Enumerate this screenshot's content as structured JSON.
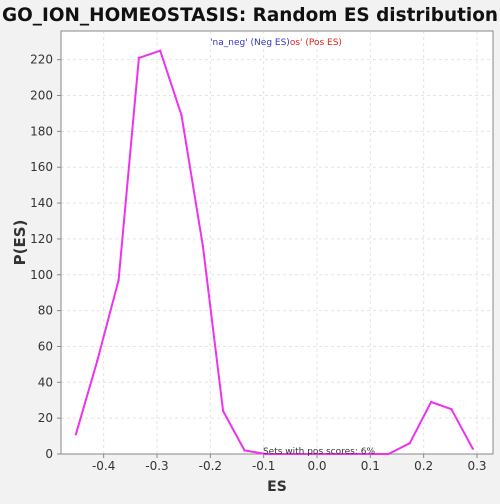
{
  "chart_data": {
    "type": "line",
    "title": "GO_ION_HOMEOSTASIS: Random ES distribution",
    "xlabel": "ES",
    "ylabel": "P(ES)",
    "xlim": [
      -0.48,
      0.33
    ],
    "ylim": [
      0,
      236
    ],
    "grid": true,
    "x_ticks": [
      -0.4,
      -0.3,
      -0.2,
      -0.1,
      0.0,
      0.1,
      0.2,
      0.3
    ],
    "x_tick_labels": [
      "-0.4",
      "-0.3",
      "-0.2",
      "-0.1",
      "0.0",
      "0.1",
      "0.2",
      "0.3"
    ],
    "y_ticks": [
      0,
      20,
      40,
      60,
      80,
      100,
      120,
      140,
      160,
      180,
      200,
      220
    ],
    "y_tick_labels": [
      "0",
      "20",
      "40",
      "60",
      "80",
      "100",
      "120",
      "140",
      "160",
      "180",
      "200",
      "220"
    ],
    "legend": {
      "placement": "top-center",
      "entries": [
        {
          "text": "'na_neg' (Neg ES)",
          "color": "#3333cc"
        },
        {
          "text": "os' (Pos ES)",
          "color": "#dd2222"
        }
      ]
    },
    "annotation": "Sets with pos scores: 6%",
    "series": [
      {
        "color": "#ee33ee",
        "points": [
          [
            -0.452,
            11
          ],
          [
            -0.412,
            52
          ],
          [
            -0.372,
            97
          ],
          [
            -0.334,
            221
          ],
          [
            -0.294,
            225
          ],
          [
            -0.254,
            189
          ],
          [
            -0.214,
            116
          ],
          [
            -0.176,
            24
          ],
          [
            -0.136,
            2
          ],
          [
            -0.096,
            0
          ],
          [
            -0.056,
            0
          ],
          [
            -0.016,
            0
          ],
          [
            0.024,
            0
          ],
          [
            0.064,
            0
          ],
          [
            0.104,
            0
          ],
          [
            0.134,
            0
          ],
          [
            0.174,
            6
          ],
          [
            0.214,
            29
          ],
          [
            0.252,
            25
          ],
          [
            0.292,
            3
          ]
        ]
      }
    ]
  },
  "colors": {
    "background": "#f2f2f2",
    "plot_background": "#ffffff",
    "grid": "#e4e4e4",
    "axis": "#888888",
    "text": "#333333"
  }
}
